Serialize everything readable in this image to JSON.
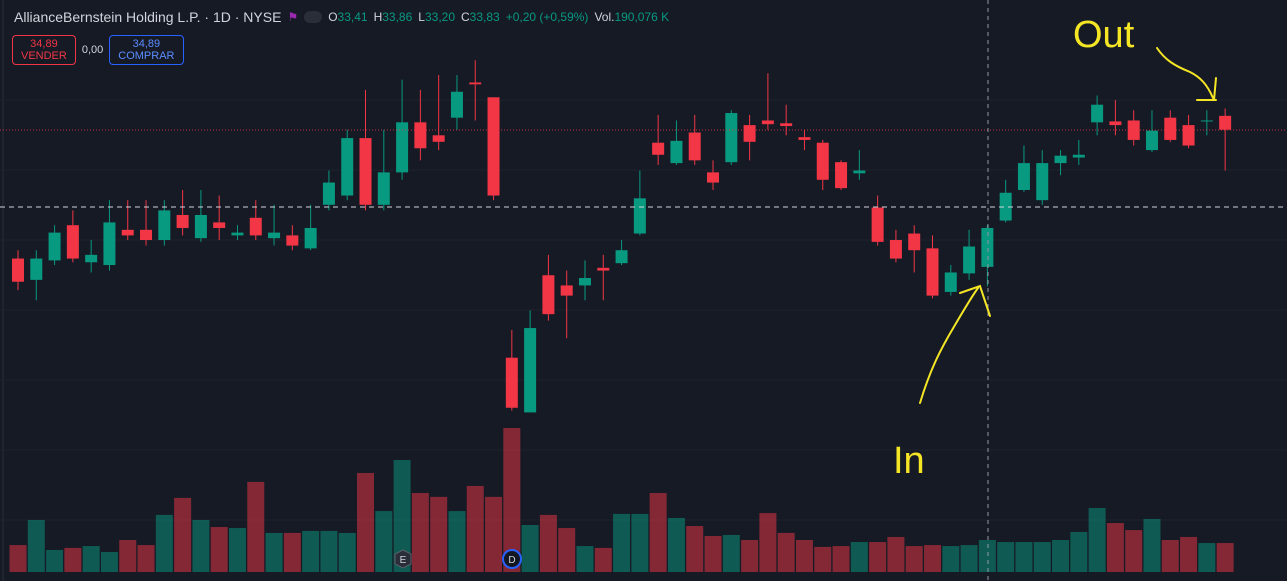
{
  "header": {
    "symbol": "AllianceBernstein Holding L.P. · 1D · NYSE",
    "ohlc": [
      {
        "key": "O",
        "value": "33,41"
      },
      {
        "key": "H",
        "value": "33,86"
      },
      {
        "key": "L",
        "value": "33,20"
      },
      {
        "key": "C",
        "value": "33,83"
      }
    ],
    "change": "+0,20 (+0,59%)",
    "volume": {
      "key": "Vol.",
      "value": "190,076 K"
    }
  },
  "trade": {
    "sell_price": "34,89",
    "sell_label": "VENDER",
    "spread": "0,00",
    "buy_price": "34,89",
    "buy_label": "COMPRAR"
  },
  "annotations": {
    "out": "Out",
    "in": "In"
  },
  "events": [
    "E",
    "D"
  ],
  "chart_data": {
    "type": "candlestick",
    "up_color": "#089981",
    "down_color": "#f23645",
    "ylim": [
      31.65,
      36.29
    ],
    "volume_ylim": [
      0,
      1437
    ],
    "open": [
      33.5,
      33.27,
      33.48,
      33.86,
      33.46,
      33.43,
      33.81,
      33.81,
      33.7,
      33.97,
      33.72,
      33.89,
      33.75,
      33.94,
      33.72,
      33.75,
      33.61,
      34.08,
      34.18,
      34.8,
      34.08,
      34.43,
      34.97,
      34.83,
      35.02,
      35.4,
      35.24,
      32.43,
      31.84,
      33.32,
      33.21,
      33.21,
      33.4,
      33.45,
      33.77,
      34.75,
      34.53,
      34.86,
      34.43,
      34.54,
      34.94,
      34.99,
      34.96,
      34.81,
      34.75,
      34.54,
      34.42,
      34.05,
      33.7,
      33.77,
      33.61,
      33.14,
      33.34,
      33.41,
      33.91,
      34.24,
      34.13,
      34.53,
      34.59,
      34.97,
      34.98,
      34.99,
      34.67,
      35.02,
      34.94,
      34.99,
      35.04
    ],
    "high": [
      33.59,
      33.59,
      33.86,
      34.02,
      33.7,
      34.13,
      34.13,
      34.13,
      34.13,
      34.24,
      34.24,
      34.18,
      33.86,
      34.13,
      34.08,
      33.86,
      34.08,
      34.45,
      34.89,
      35.32,
      34.89,
      35.43,
      35.32,
      35.48,
      35.48,
      35.64,
      35.24,
      32.73,
      32.94,
      33.54,
      33.37,
      33.48,
      33.54,
      33.7,
      34.45,
      35.05,
      34.99,
      35.05,
      34.56,
      35.1,
      35.05,
      35.5,
      35.16,
      34.89,
      34.78,
      34.56,
      34.67,
      34.18,
      33.81,
      33.86,
      33.75,
      33.43,
      33.81,
      33.86,
      34.35,
      34.72,
      34.67,
      34.67,
      34.78,
      35.26,
      35.21,
      35.1,
      35.1,
      35.1,
      35.05,
      35.1,
      35.12
    ],
    "low": [
      33.16,
      33.05,
      33.43,
      33.46,
      33.35,
      33.37,
      33.7,
      33.64,
      33.64,
      33.75,
      33.68,
      33.7,
      33.7,
      33.7,
      33.64,
      33.59,
      33.59,
      34.02,
      34.13,
      34.02,
      34.02,
      34.35,
      34.56,
      34.67,
      34.89,
      34.99,
      34.13,
      31.86,
      31.84,
      32.83,
      32.64,
      33.05,
      33.05,
      33.43,
      33.75,
      34.51,
      34.51,
      34.51,
      34.24,
      34.51,
      34.56,
      34.89,
      34.83,
      34.67,
      34.24,
      34.24,
      34.35,
      33.64,
      33.46,
      33.35,
      33.07,
      33.1,
      33.27,
      33.2,
      33.89,
      34.22,
      34.08,
      34.4,
      34.51,
      34.83,
      34.83,
      34.72,
      34.65,
      34.76,
      34.69,
      34.83,
      34.45
    ],
    "close": [
      33.25,
      33.5,
      33.78,
      33.5,
      33.54,
      33.89,
      33.75,
      33.7,
      34.02,
      33.83,
      33.97,
      33.83,
      33.78,
      33.75,
      33.78,
      33.64,
      33.83,
      34.32,
      34.8,
      34.08,
      34.43,
      34.97,
      34.69,
      34.76,
      35.3,
      35.38,
      34.18,
      31.89,
      32.75,
      32.9,
      33.1,
      33.29,
      33.37,
      33.59,
      34.15,
      34.62,
      34.77,
      34.56,
      34.32,
      35.07,
      34.76,
      34.95,
      34.93,
      34.78,
      34.35,
      34.26,
      34.45,
      33.68,
      33.5,
      33.59,
      33.1,
      33.35,
      33.63,
      33.83,
      34.21,
      34.53,
      34.53,
      34.61,
      34.62,
      35.16,
      34.94,
      34.78,
      34.88,
      34.78,
      34.72,
      34.99,
      34.89
    ],
    "volume": [
      160,
      309,
      131,
      143,
      154,
      119,
      190,
      160,
      339,
      440,
      309,
      267,
      261,
      535,
      232,
      232,
      244,
      244,
      232,
      588,
      362,
      665,
      469,
      446,
      362,
      511,
      446,
      855,
      279,
      339,
      261,
      154,
      143,
      345,
      345,
      469,
      321,
      273,
      214,
      220,
      190,
      350,
      232,
      190,
      149,
      154,
      178,
      178,
      208,
      154,
      160,
      154,
      160,
      190.076,
      178,
      178,
      178,
      190,
      238,
      380,
      291,
      249,
      315,
      190,
      208,
      172,
      172
    ]
  }
}
